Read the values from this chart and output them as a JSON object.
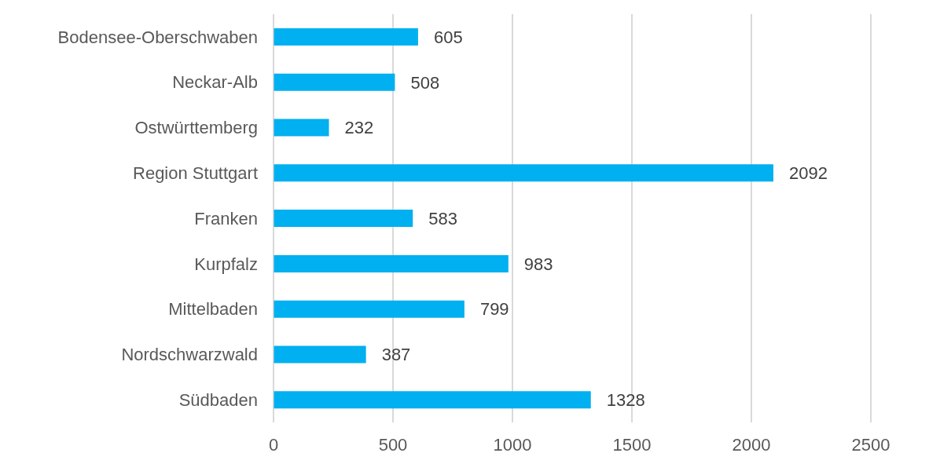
{
  "chart_data": {
    "type": "bar",
    "orientation": "horizontal",
    "categories": [
      "Bodensee-Oberschwaben",
      "Neckar-Alb",
      "Ostwürttemberg",
      "Region Stuttgart",
      "Franken",
      "Kurpfalz",
      "Mittelbaden",
      "Nordschwarzwald",
      "Südbaden"
    ],
    "values": [
      605,
      508,
      232,
      2092,
      583,
      983,
      799,
      387,
      1328
    ],
    "color": "#00b0f0",
    "xlim": [
      0,
      2500
    ],
    "xticks": [
      0,
      500,
      1000,
      1500,
      2000,
      2500
    ],
    "grid": "x",
    "data_labels": true
  }
}
